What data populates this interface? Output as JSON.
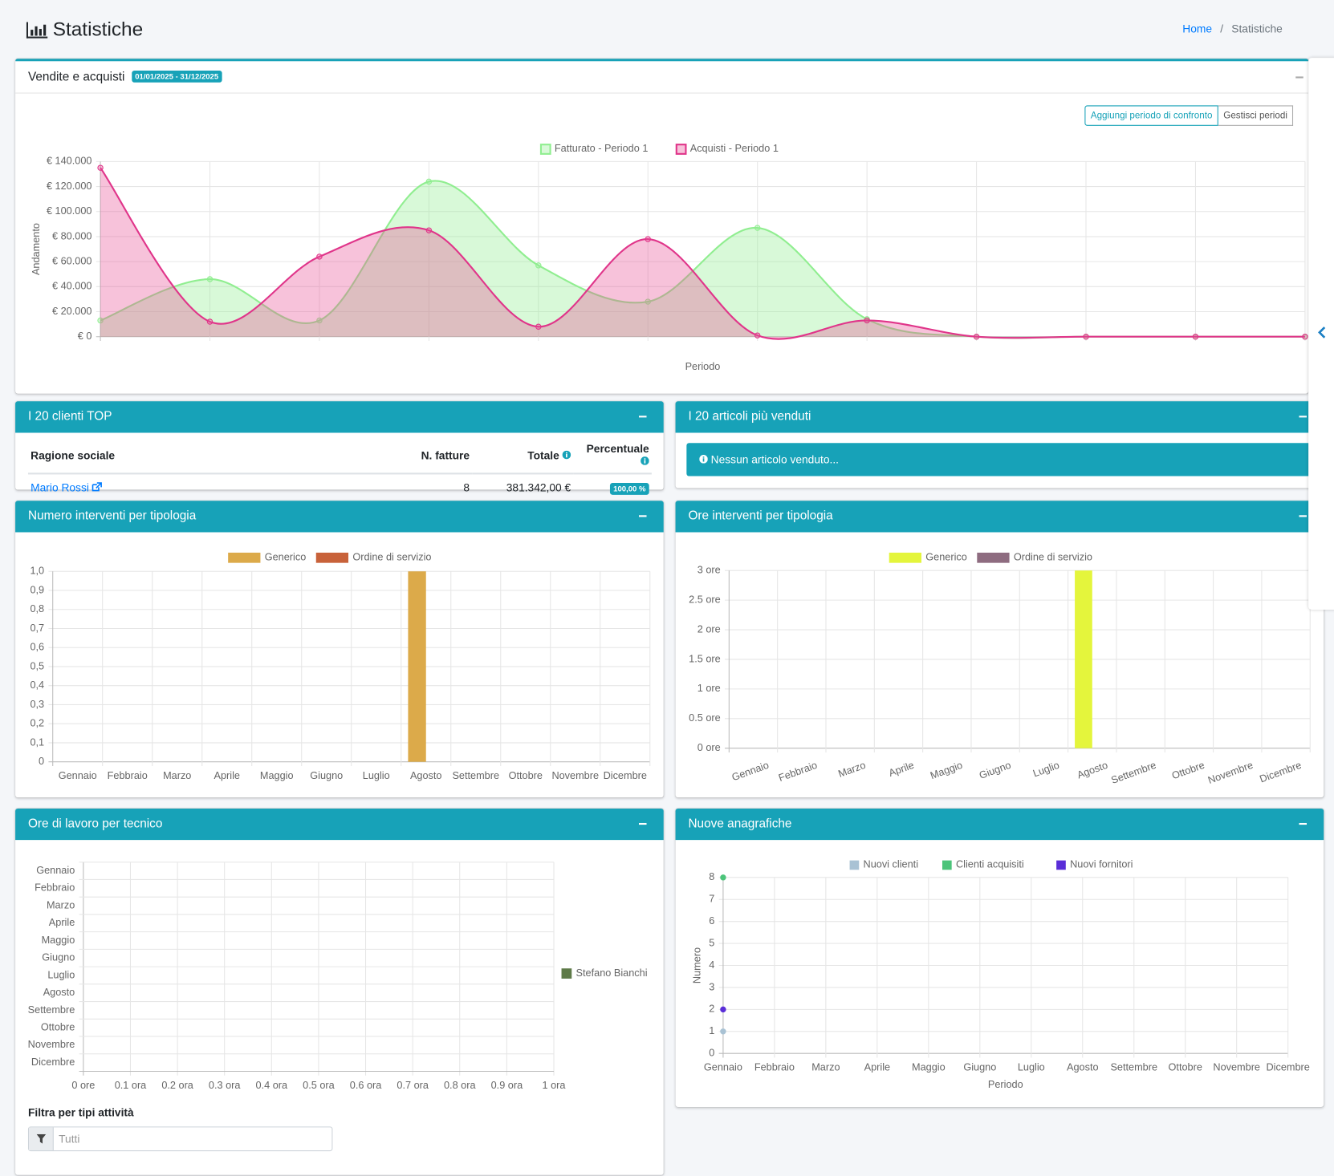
{
  "header": {
    "title": "Statistiche",
    "breadcrumb": [
      "Home",
      "Statistiche"
    ]
  },
  "sales_panel": {
    "period": "01/01/2025 - 31/12/2025",
    "buttons": [
      "Aggiungi periodo di confronto",
      "Gestisci periodi"
    ]
  },
  "top_clients": {
    "title": "I 20 clienti TOP",
    "columns": [
      "Ragione sociale",
      "N. fatture",
      "Totale",
      "Percentuale"
    ],
    "rows": [
      [
        "Mario Rossi",
        8,
        "381.342,00 €",
        "100,00 %"
      ]
    ]
  },
  "top_articles": {
    "title": "I 20 articoli più venduti",
    "message": "Nessun articolo venduto..."
  },
  "activity_filter": {
    "label": "Filtra per tipi attività",
    "placeholder": "Tutti"
  },
  "chart_data": [
    {
      "type": "area",
      "title": "Vendite e acquisti",
      "x_label": "Periodo",
      "y_label": "Andamento",
      "categories": [
        null,
        null,
        null,
        null,
        null,
        null,
        null,
        null,
        null,
        null,
        null,
        null
      ],
      "series": [
        {
          "name": "Fatturato - Periodo 1",
          "color": "#90ee90",
          "fill": "rgba(144,238,144,0.35)",
          "values": [
            13000,
            46000,
            13000,
            124000,
            57000,
            28000,
            87000,
            14000,
            0,
            0,
            0,
            0
          ]
        },
        {
          "name": "Acquisti - Periodo 1",
          "color": "#e0358a",
          "fill": "rgba(232,80,150,0.35)",
          "values": [
            135000,
            12000,
            64000,
            85000,
            8000,
            78000,
            1000,
            13000,
            0,
            0,
            0,
            0
          ]
        }
      ],
      "ylim": [
        0,
        140000
      ],
      "yticks": [
        {
          "value": 0,
          "label": "€ 0"
        },
        {
          "value": 20000,
          "label": "€ 20.000"
        },
        {
          "value": 40000,
          "label": "€ 40.000"
        },
        {
          "value": 60000,
          "label": "€ 60.000"
        },
        {
          "value": 80000,
          "label": "€ 80.000"
        },
        {
          "value": 100000,
          "label": "€ 100.000"
        },
        {
          "value": 120000,
          "label": "€ 120.000"
        },
        {
          "value": 140000,
          "label": "€ 140.000"
        }
      ],
      "grid": true
    },
    {
      "type": "bar",
      "title": "Numero interventi per tipologia",
      "categories": [
        "Gennaio",
        "Febbraio",
        "Marzo",
        "Aprile",
        "Maggio",
        "Giugno",
        "Luglio",
        "Agosto",
        "Settembre",
        "Ottobre",
        "Novembre",
        "Dicembre"
      ],
      "series": [
        {
          "name": "Generico",
          "color": "#dcaa4a",
          "values": [
            0,
            0,
            0,
            0,
            0,
            0,
            0,
            1,
            0,
            0,
            0,
            0
          ]
        },
        {
          "name": "Ordine di servizio",
          "color": "#c8623a",
          "values": [
            0,
            0,
            0,
            0,
            0,
            0,
            0,
            0,
            0,
            0,
            0,
            0
          ]
        }
      ],
      "ylim": [
        0,
        1
      ],
      "yticks": [
        0,
        {
          "value": 0.1,
          "label": "0,1"
        },
        {
          "value": 0.2,
          "label": "0,2"
        },
        {
          "value": 0.3,
          "label": "0,3"
        },
        {
          "value": 0.4,
          "label": "0,4"
        },
        {
          "value": 0.5,
          "label": "0,5"
        },
        {
          "value": 0.6,
          "label": "0,6"
        },
        {
          "value": 0.7,
          "label": "0,7"
        },
        {
          "value": 0.8,
          "label": "0,8"
        },
        {
          "value": 0.9,
          "label": "0,9"
        },
        {
          "value": 1,
          "label": "1,0"
        }
      ],
      "grid": true
    },
    {
      "type": "bar",
      "title": "Ore interventi per tipologia",
      "categories": [
        "Gennaio",
        "Febbraio",
        "Marzo",
        "Aprile",
        "Maggio",
        "Giugno",
        "Luglio",
        "Agosto",
        "Settembre",
        "Ottobre",
        "Novembre",
        "Dicembre"
      ],
      "series": [
        {
          "name": "Generico",
          "color": "#e4f53c",
          "values": [
            0,
            0,
            0,
            0,
            0,
            0,
            0,
            3,
            0,
            0,
            0,
            0
          ]
        },
        {
          "name": "Ordine di servizio",
          "color": "#8e6c80",
          "values": [
            0,
            0,
            0,
            0,
            0,
            0,
            0,
            0,
            0,
            0,
            0,
            0
          ]
        }
      ],
      "ylim": [
        0,
        3
      ],
      "yticks": [
        {
          "value": 0,
          "label": "0 ore"
        },
        {
          "value": 0.5,
          "label": "0.5 ore"
        },
        {
          "value": 1,
          "label": "1 ore"
        },
        {
          "value": 1.5,
          "label": "1.5 ore"
        },
        {
          "value": 2,
          "label": "2 ore"
        },
        {
          "value": 2.5,
          "label": "2.5 ore"
        },
        {
          "value": 3,
          "label": "3 ore"
        }
      ],
      "grid": true
    },
    {
      "type": "barh",
      "title": "Ore di lavoro per tecnico",
      "categories": [
        "Gennaio",
        "Febbraio",
        "Marzo",
        "Aprile",
        "Maggio",
        "Giugno",
        "Luglio",
        "Agosto",
        "Settembre",
        "Ottobre",
        "Novembre",
        "Dicembre"
      ],
      "series": [
        {
          "name": "Stefano Bianchi",
          "color": "#5e7a48",
          "values": [
            0,
            0,
            0,
            0,
            0,
            0,
            0,
            0,
            0,
            0,
            0,
            0
          ]
        }
      ],
      "xlim": [
        0,
        1
      ],
      "xticks": [
        {
          "value": 0,
          "label": "0 ore"
        },
        {
          "value": 0.1,
          "label": "0.1 ora"
        },
        {
          "value": 0.2,
          "label": "0.2 ora"
        },
        {
          "value": 0.3,
          "label": "0.3 ora"
        },
        {
          "value": 0.4,
          "label": "0.4 ora"
        },
        {
          "value": 0.5,
          "label": "0.5 ora"
        },
        {
          "value": 0.6,
          "label": "0.6 ora"
        },
        {
          "value": 0.7,
          "label": "0.7 ora"
        },
        {
          "value": 0.8,
          "label": "0.8 ora"
        },
        {
          "value": 0.9,
          "label": "0.9 ora"
        },
        {
          "value": 1,
          "label": "1 ora"
        }
      ],
      "legend": "right",
      "grid": true
    },
    {
      "type": "line",
      "title": "Nuove anagrafiche",
      "x_label": "Periodo",
      "y_label": "Numero",
      "categories": [
        "Gennaio",
        "Febbraio",
        "Marzo",
        "Aprile",
        "Maggio",
        "Giugno",
        "Luglio",
        "Agosto",
        "Settembre",
        "Ottobre",
        "Novembre",
        "Dicembre"
      ],
      "series": [
        {
          "name": "Nuovi clienti",
          "color": "#a9c2d4",
          "values": [
            1,
            null,
            null,
            null,
            null,
            null,
            null,
            null,
            null,
            null,
            null,
            null
          ]
        },
        {
          "name": "Clienti acquisiti",
          "color": "#4cc47a",
          "values": [
            8,
            null,
            null,
            null,
            null,
            null,
            null,
            null,
            null,
            null,
            null,
            null
          ]
        },
        {
          "name": "Nuovi fornitori",
          "color": "#5a2ed8",
          "values": [
            2,
            null,
            null,
            null,
            null,
            null,
            null,
            null,
            null,
            null,
            null,
            null
          ]
        }
      ],
      "ylim": [
        0,
        8
      ],
      "yticks": [
        0,
        1,
        2,
        3,
        4,
        5,
        6,
        7,
        8
      ],
      "grid": true
    }
  ]
}
